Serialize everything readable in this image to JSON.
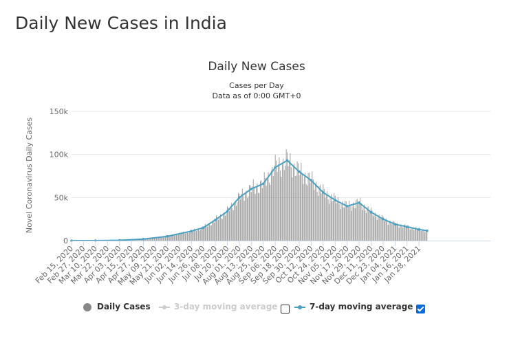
{
  "page": {
    "title": "Daily New Cases in India"
  },
  "chart_data": {
    "type": "bar",
    "title": "Daily New Cases",
    "subtitle_lines": [
      "Cases per Day",
      "Data as of 0:00 GMT+0"
    ],
    "ylabel": "Novel Coronavirus Daily Cases",
    "xlabel": "",
    "ylim": [
      0,
      150000
    ],
    "y_ticks": [
      0,
      50000,
      100000,
      150000
    ],
    "y_tick_labels": [
      "0",
      "50k",
      "100k",
      "150k"
    ],
    "x_tick_labels": [
      "Feb 15, 2020",
      "Feb 27, 2020",
      "Mar 10, 2020",
      "Mar 22, 2020",
      "Apr 03, 2020",
      "Apr 15, 2020",
      "Apr 27, 2020",
      "May 09, 2020",
      "May 21, 2020",
      "Jun 02, 2020",
      "Jun 14, 2020",
      "Jun 26, 2020",
      "Jul 08, 2020",
      "Jul 20, 2020",
      "Aug 01, 2020",
      "Aug 13, 2020",
      "Aug 25, 2020",
      "Sep 06, 2020",
      "Sep 18, 2020",
      "Sep 30, 2020",
      "Oct 12, 2020",
      "Oct 24, 2020",
      "Nov 05, 2020",
      "Nov 17, 2020",
      "Nov 29, 2020",
      "Dec 11, 2020",
      "Dec 23, 2020",
      "Jan 04, 2021",
      "Jan 16, 2021",
      "Jan 28, 2021"
    ],
    "x_tick_start_date": "Feb 15, 2020",
    "x_tick_interval_days": 12,
    "grid": true,
    "legend_position": "bottom",
    "bar_color": "#8a8a8a",
    "line_color": "#4aa0c2",
    "series": [
      {
        "name": "Daily Cases",
        "type": "bar"
      },
      {
        "name": "3-day moving average",
        "type": "line",
        "enabled": false
      },
      {
        "name": "7-day moving average",
        "type": "line",
        "enabled": true,
        "x": [
          "Feb 15, 2020",
          "Mar 10, 2020",
          "Apr 03, 2020",
          "Apr 27, 2020",
          "May 21, 2020",
          "Jun 14, 2020",
          "Jun 26, 2020",
          "Jul 08, 2020",
          "Jul 20, 2020",
          "Aug 01, 2020",
          "Aug 13, 2020",
          "Aug 25, 2020",
          "Sep 06, 2020",
          "Sep 18, 2020",
          "Sep 30, 2020",
          "Oct 12, 2020",
          "Oct 24, 2020",
          "Nov 05, 2020",
          "Nov 17, 2020",
          "Nov 29, 2020",
          "Dec 11, 2020",
          "Dec 23, 2020",
          "Jan 04, 2021",
          "Jan 16, 2021",
          "Jan 28, 2021",
          "Feb 05, 2021"
        ],
        "values": [
          0,
          20,
          400,
          1800,
          5000,
          11000,
          15000,
          24000,
          34000,
          50000,
          60000,
          66000,
          85000,
          93000,
          80000,
          70000,
          56000,
          47000,
          40000,
          44000,
          33000,
          25000,
          19000,
          16000,
          13000,
          11500
        ]
      }
    ],
    "legend": {
      "daily": "Daily Cases",
      "three": "3-day moving average",
      "seven": "7-day moving average",
      "three_checked": false,
      "seven_checked": true
    }
  }
}
